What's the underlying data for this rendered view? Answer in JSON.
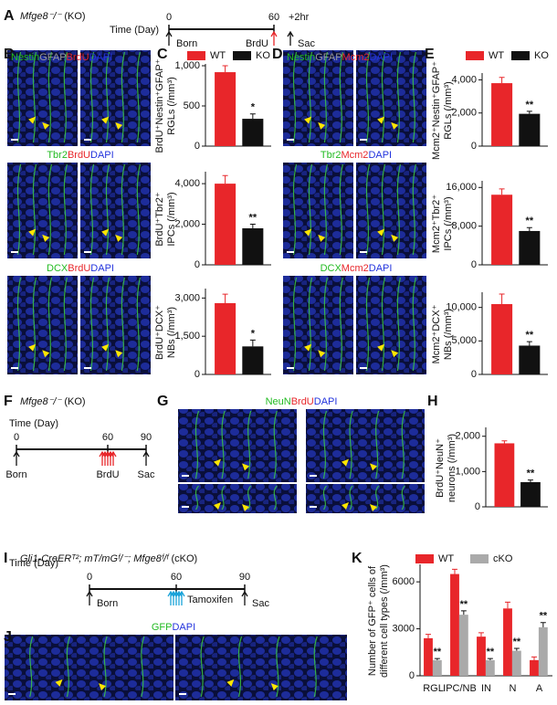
{
  "figure": {
    "panel_labels": [
      "A",
      "B",
      "C",
      "D",
      "E",
      "F",
      "G",
      "H",
      "I",
      "J",
      "K"
    ],
    "timelines": [
      {
        "title": "Mfge8⁻/⁻",
        "group": "(KO)",
        "axis_label": "Time (Day)",
        "ticks": [
          "0",
          "60"
        ],
        "extra": {
          "text": "+2hr",
          "color": "#e8262a"
        },
        "events": [
          {
            "text": "Born",
            "color": "#111111"
          },
          {
            "text": "BrdU",
            "color": "#e8262a"
          },
          {
            "text": "Sac",
            "color": "#111111"
          }
        ]
      },
      {
        "title": "Mfge8⁻/⁻",
        "group": "(KO)",
        "axis_label": "Time (Day)",
        "ticks": [
          "0",
          "60",
          "90"
        ],
        "events": [
          {
            "text": "Born",
            "color": "#111111"
          },
          {
            "text": "BrdU",
            "color": "#e8262a"
          },
          {
            "text": "Sac",
            "color": "#111111"
          }
        ]
      },
      {
        "title": "Gli1-CreERᵀ²; mT/mGᶠ/⁻; Mfge8ᶠ/ᶠ",
        "group": "(cKO)",
        "axis_label": "Time (Day)",
        "ticks": [
          "0",
          "60",
          "90"
        ],
        "events": [
          {
            "text": "Born",
            "color": "#111111"
          },
          {
            "text": "Tamoxifen",
            "color": "#1aa3d9"
          },
          {
            "text": "Sac",
            "color": "#111111"
          }
        ]
      }
    ],
    "stain_labels": [
      [
        {
          "text": "Nestin",
          "color": "#22bb22"
        },
        {
          "text": "GFAP",
          "color": "#999999"
        },
        {
          "text": "BrdU",
          "color": "#e8262a"
        },
        {
          "text": "DAPI",
          "color": "#2233dd"
        }
      ],
      [
        {
          "text": "Tbr2",
          "color": "#22bb22"
        },
        {
          "text": "BrdU",
          "color": "#e8262a"
        },
        {
          "text": "DAPI",
          "color": "#2233dd"
        }
      ],
      [
        {
          "text": "DCX",
          "color": "#22bb22"
        },
        {
          "text": "BrdU",
          "color": "#e8262a"
        },
        {
          "text": "DAPI",
          "color": "#2233dd"
        }
      ],
      [
        {
          "text": "Nestin",
          "color": "#22bb22"
        },
        {
          "text": "GFAP",
          "color": "#999999"
        },
        {
          "text": "Mcm2",
          "color": "#e8262a"
        },
        {
          "text": "DAPI",
          "color": "#2233dd"
        }
      ],
      [
        {
          "text": "Tbr2",
          "color": "#22bb22"
        },
        {
          "text": "Mcm2",
          "color": "#e8262a"
        },
        {
          "text": "DAPI",
          "color": "#2233dd"
        }
      ],
      [
        {
          "text": "DCX",
          "color": "#22bb22"
        },
        {
          "text": "Mcm2",
          "color": "#e8262a"
        },
        {
          "text": "DAPI",
          "color": "#2233dd"
        }
      ],
      [
        {
          "text": "NeuN",
          "color": "#22bb22"
        },
        {
          "text": "BrdU",
          "color": "#e8262a"
        },
        {
          "text": "DAPI",
          "color": "#2233dd"
        }
      ],
      [
        {
          "text": "GFP",
          "color": "#22bb22"
        },
        {
          "text": "DAPI",
          "color": "#2233dd"
        }
      ]
    ]
  },
  "chart_data": [
    {
      "type": "bar",
      "ylabel": [
        "BrdU⁺Nestin⁺GFAP⁺",
        "RGLs (/mm³)"
      ],
      "ylim": [
        0,
        1000
      ],
      "yticks": [
        0,
        500,
        {
          "value": 1000,
          "label": "1,000"
        }
      ],
      "annotation": "*",
      "series": [
        {
          "name": "WT",
          "color": "#e8262a",
          "values": [
            920
          ],
          "errors": [
            80
          ]
        },
        {
          "name": "KO",
          "color": "#111111",
          "values": [
            340
          ],
          "errors": [
            60
          ]
        }
      ]
    },
    {
      "type": "bar",
      "ylabel": [
        "BrdU⁺Tbr2⁺",
        "IPCs (/mm³)"
      ],
      "ylim": [
        0,
        4500
      ],
      "yticks": [
        0,
        {
          "value": 2000,
          "label": "2,000"
        },
        {
          "value": 4000,
          "label": "4,000"
        }
      ],
      "annotation": "**",
      "series": [
        {
          "color": "#e8262a",
          "values": [
            4000
          ],
          "errors": [
            400
          ]
        },
        {
          "color": "#111111",
          "values": [
            1800
          ],
          "errors": [
            200
          ]
        }
      ]
    },
    {
      "type": "bar",
      "ylabel": [
        "BrdU⁺DCX⁺",
        "NBs (/mm³)"
      ],
      "ylim": [
        0,
        3300
      ],
      "yticks": [
        0,
        {
          "value": 1500,
          "label": "1,500"
        },
        {
          "value": 3000,
          "label": "3,000"
        }
      ],
      "annotation": "*",
      "series": [
        {
          "color": "#e8262a",
          "values": [
            2800
          ],
          "errors": [
            350
          ]
        },
        {
          "color": "#111111",
          "values": [
            1100
          ],
          "errors": [
            250
          ]
        }
      ]
    },
    {
      "type": "bar",
      "ylabel": [
        "Mcm2⁺Nestin⁺GFAP⁺",
        "RGLs (/mm³)"
      ],
      "ylim": [
        0,
        4300
      ],
      "yticks": [
        0,
        {
          "value": 2000,
          "label": "2,000"
        },
        {
          "value": 4000,
          "label": "4,000"
        }
      ],
      "annotation": "**",
      "series": [
        {
          "name": "WT",
          "color": "#e8262a",
          "values": [
            3800
          ],
          "errors": [
            350
          ]
        },
        {
          "name": "KO",
          "color": "#111111",
          "values": [
            1950
          ],
          "errors": [
            150
          ]
        }
      ]
    },
    {
      "type": "bar",
      "ylabel": [
        "Mcm2⁺Tbr2⁺",
        "IPCs (/mm³)"
      ],
      "ylim": [
        0,
        17000
      ],
      "yticks": [
        0,
        {
          "value": 8000,
          "label": "8,000"
        },
        {
          "value": 16000,
          "label": "16,000"
        }
      ],
      "annotation": "**",
      "series": [
        {
          "color": "#e8262a",
          "values": [
            14500
          ],
          "errors": [
            1200
          ]
        },
        {
          "color": "#111111",
          "values": [
            7000
          ],
          "errors": [
            700
          ]
        }
      ]
    },
    {
      "type": "bar",
      "ylabel": [
        "Mcm2⁺DCX⁺",
        "NBs (/mm³)"
      ],
      "ylim": [
        0,
        12000
      ],
      "yticks": [
        0,
        {
          "value": 5000,
          "label": "5,000"
        },
        {
          "value": 10000,
          "label": "10,000"
        }
      ],
      "annotation": "**",
      "series": [
        {
          "color": "#e8262a",
          "values": [
            10500
          ],
          "errors": [
            1500
          ]
        },
        {
          "color": "#111111",
          "values": [
            4300
          ],
          "errors": [
            600
          ]
        }
      ]
    },
    {
      "type": "bar",
      "ylabel": [
        "BrdU⁺NeuN⁺",
        "neurons (/mm³)"
      ],
      "ylim": [
        0,
        2200
      ],
      "yticks": [
        0,
        {
          "value": 1000,
          "label": "1,000"
        },
        {
          "value": 2000,
          "label": "2,000"
        }
      ],
      "annotation": "**",
      "series": [
        {
          "color": "#e8262a",
          "values": [
            1800
          ],
          "errors": [
            70
          ]
        },
        {
          "color": "#111111",
          "values": [
            700
          ],
          "errors": [
            60
          ]
        }
      ]
    },
    {
      "type": "bar",
      "ylabel": [
        "Number of GFP⁺ cells of",
        "different cell types (/mm³)"
      ],
      "ylim": [
        0,
        7000
      ],
      "yticks": [
        0,
        3000,
        6000
      ],
      "categories": [
        "RGL",
        "IPC/NB",
        "IN",
        "N",
        "A"
      ],
      "annotations": [
        "**",
        "**",
        "**",
        "**",
        "**"
      ],
      "series": [
        {
          "name": "WT",
          "color": "#e8262a",
          "values": [
            2400,
            6500,
            2500,
            4300,
            1000
          ],
          "errors": [
            250,
            300,
            250,
            400,
            200
          ]
        },
        {
          "name": "cKO",
          "color": "#aaaaaa",
          "values": [
            1000,
            3900,
            1000,
            1600,
            3100
          ],
          "errors": [
            100,
            250,
            100,
            150,
            300
          ]
        }
      ]
    }
  ]
}
